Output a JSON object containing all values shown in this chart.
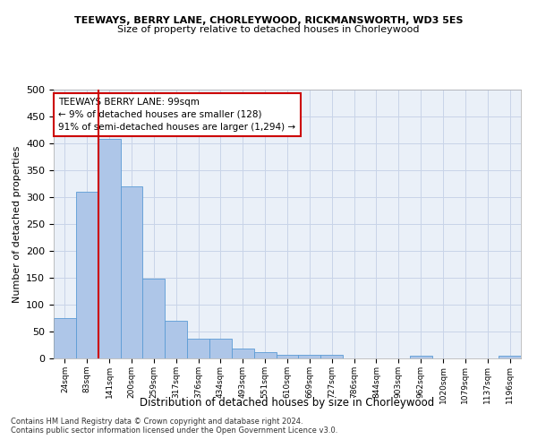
{
  "title1": "TEEWAYS, BERRY LANE, CHORLEYWOOD, RICKMANSWORTH, WD3 5ES",
  "title2": "Size of property relative to detached houses in Chorleywood",
  "xlabel": "Distribution of detached houses by size in Chorleywood",
  "ylabel": "Number of detached properties",
  "categories": [
    "24sqm",
    "83sqm",
    "141sqm",
    "200sqm",
    "259sqm",
    "317sqm",
    "376sqm",
    "434sqm",
    "493sqm",
    "551sqm",
    "610sqm",
    "669sqm",
    "727sqm",
    "786sqm",
    "844sqm",
    "903sqm",
    "962sqm",
    "1020sqm",
    "1079sqm",
    "1137sqm",
    "1196sqm"
  ],
  "values": [
    75,
    310,
    408,
    320,
    148,
    70,
    37,
    37,
    19,
    12,
    6,
    6,
    6,
    0,
    0,
    0,
    5,
    0,
    0,
    0,
    5
  ],
  "bar_color": "#aec6e8",
  "bar_edge_color": "#5b9bd5",
  "grid_color": "#c8d4e8",
  "vline_color": "#cc0000",
  "annotation_text": "TEEWAYS BERRY LANE: 99sqm\n← 9% of detached houses are smaller (128)\n91% of semi-detached houses are larger (1,294) →",
  "annotation_box_color": "#ffffff",
  "annotation_box_edge": "#cc0000",
  "footnote": "Contains HM Land Registry data © Crown copyright and database right 2024.\nContains public sector information licensed under the Open Government Licence v3.0.",
  "ylim": [
    0,
    500
  ],
  "yticks": [
    0,
    50,
    100,
    150,
    200,
    250,
    300,
    350,
    400,
    450,
    500
  ],
  "bg_color": "#eaf0f8",
  "title1_fontsize": 8.0,
  "title2_fontsize": 8.0,
  "xlabel_fontsize": 8.5,
  "ylabel_fontsize": 8.0,
  "xtick_fontsize": 6.5,
  "ytick_fontsize": 8.0,
  "footnote_fontsize": 6.0,
  "annot_fontsize": 7.5
}
